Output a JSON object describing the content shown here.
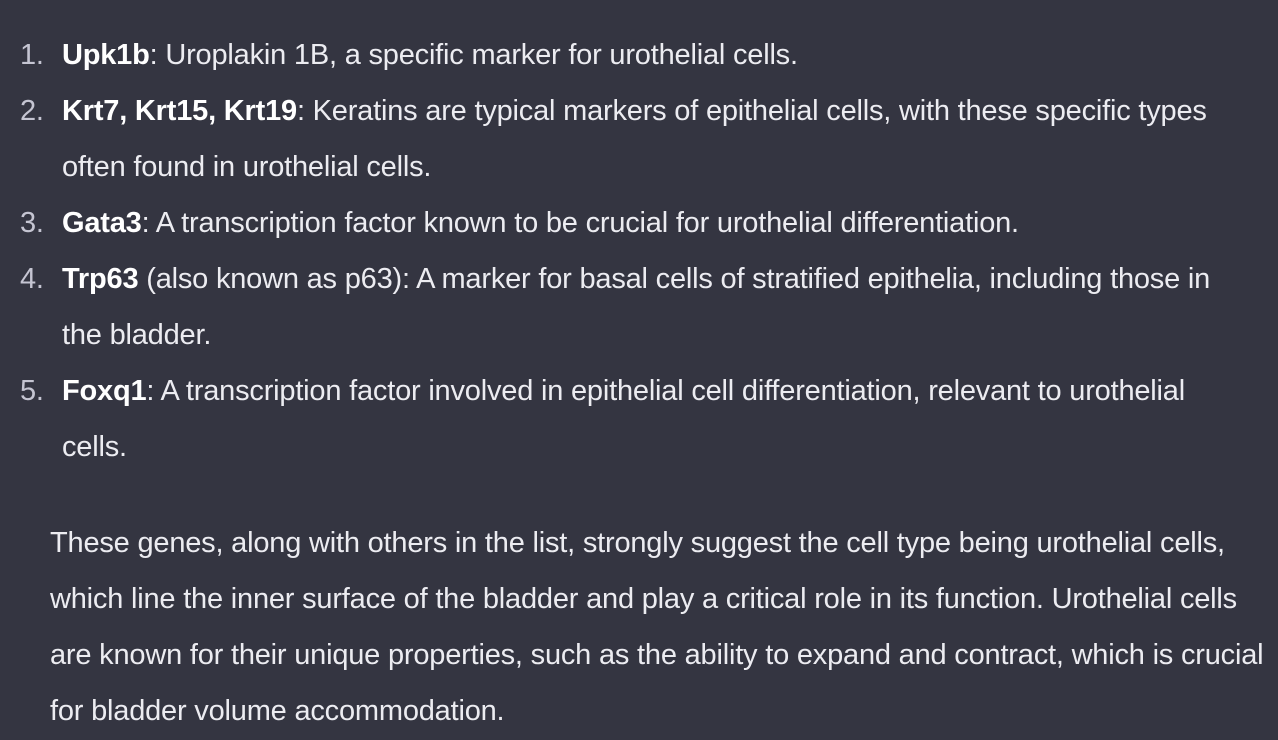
{
  "markers": [
    {
      "number": "1.",
      "gene": "Upk1b",
      "text": ": Uroplakin 1B, a specific marker for urothelial cells."
    },
    {
      "number": "2.",
      "gene": "Krt7, Krt15, Krt19",
      "text": ": Keratins are typical markers of epithelial cells, with these specific types often found in urothelial cells."
    },
    {
      "number": "3.",
      "gene": "Gata3",
      "text": ": A transcription factor known to be crucial for urothelial differentiation."
    },
    {
      "number": "4.",
      "gene": "Trp63",
      "text": " (also known as p63): A marker for basal cells of stratified epithelia, including those in the bladder."
    },
    {
      "number": "5.",
      "gene": "Foxq1",
      "text": ": A transcription factor involved in epithelial cell differentiation, relevant to urothelial cells."
    }
  ],
  "summary": "These genes, along with others in the list, strongly suggest the cell type being urothelial cells, which line the inner surface of the bladder and play a critical role in its function. Urothelial cells are known for their unique properties, such as the ability to expand and contract, which is crucial for bladder volume accommodation."
}
